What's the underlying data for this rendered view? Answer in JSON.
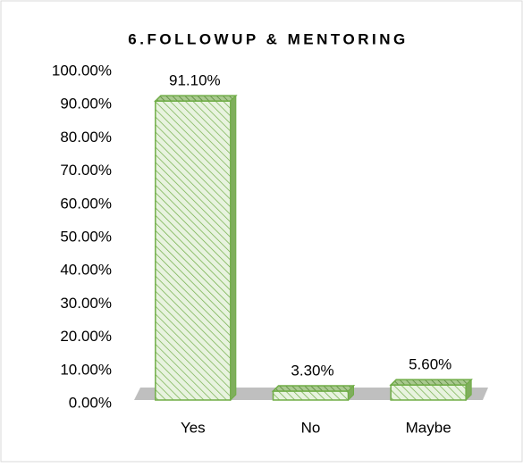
{
  "chart_data": {
    "type": "bar",
    "title": "6.FOLLOWUP & MENTORING",
    "categories": [
      "Yes",
      "No",
      "Maybe"
    ],
    "values": [
      91.1,
      3.3,
      5.6
    ],
    "value_labels": [
      "91.10%",
      "3.30%",
      "5.60%"
    ],
    "color": "#70ad47",
    "ylim": [
      0,
      100
    ],
    "yticks": [
      {
        "value": 0,
        "label": "0.00%"
      },
      {
        "value": 10,
        "label": "10.00%"
      },
      {
        "value": 20,
        "label": "20.00%"
      },
      {
        "value": 30,
        "label": "30.00%"
      },
      {
        "value": 40,
        "label": "40.00%"
      },
      {
        "value": 50,
        "label": "50.00%"
      },
      {
        "value": 60,
        "label": "60.00%"
      },
      {
        "value": 70,
        "label": "70.00%"
      },
      {
        "value": 80,
        "label": "80.00%"
      },
      {
        "value": 90,
        "label": "90.00%"
      },
      {
        "value": 100,
        "label": "100.00%"
      }
    ],
    "grid": false
  }
}
